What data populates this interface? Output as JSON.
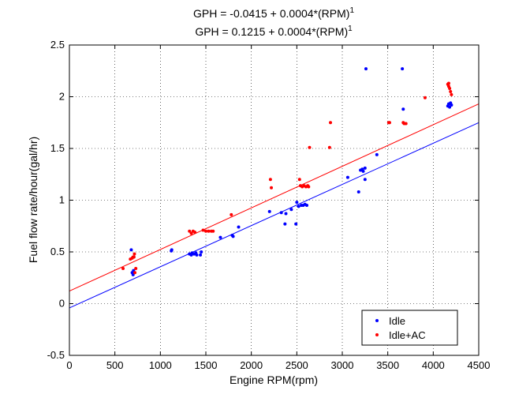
{
  "chart_data": {
    "type": "scatter",
    "title_lines": [
      {
        "text": "GPH = -0.0415 + 0.0004*(RPM)",
        "exponent": "1"
      },
      {
        "text": "GPH = 0.1215 + 0.0004*(RPM)",
        "exponent": "1"
      }
    ],
    "xlabel": "Engine RPM(rpm)",
    "ylabel": "Fuel flow rate/hour(gal/hr)",
    "xlim": [
      0,
      4500
    ],
    "ylim": [
      -0.5,
      2.5
    ],
    "xticks": [
      0,
      500,
      1000,
      1500,
      2000,
      2500,
      3000,
      3500,
      4000,
      4500
    ],
    "yticks": [
      -0.5,
      0,
      0.5,
      1,
      1.5,
      2,
      2.5
    ],
    "grid": true,
    "legend_position": "bottom-right",
    "series": [
      {
        "name": "Idle",
        "color": "#0000ff",
        "marker": "dot",
        "points": [
          [
            680,
            0.52
          ],
          [
            690,
            0.3
          ],
          [
            700,
            0.28
          ],
          [
            705,
            0.32
          ],
          [
            1120,
            0.51
          ],
          [
            1125,
            0.52
          ],
          [
            1320,
            0.48
          ],
          [
            1340,
            0.47
          ],
          [
            1350,
            0.49
          ],
          [
            1370,
            0.48
          ],
          [
            1390,
            0.49
          ],
          [
            1400,
            0.47
          ],
          [
            1440,
            0.47
          ],
          [
            1450,
            0.5
          ],
          [
            1660,
            0.64
          ],
          [
            1790,
            0.66
          ],
          [
            1800,
            0.65
          ],
          [
            1860,
            0.74
          ],
          [
            2200,
            0.89
          ],
          [
            2330,
            0.88
          ],
          [
            2370,
            0.77
          ],
          [
            2380,
            0.87
          ],
          [
            2440,
            0.91
          ],
          [
            2490,
            0.77
          ],
          [
            2500,
            0.98
          ],
          [
            2520,
            0.94
          ],
          [
            2550,
            0.95
          ],
          [
            2570,
            0.95
          ],
          [
            2590,
            0.96
          ],
          [
            2610,
            0.95
          ],
          [
            3060,
            1.22
          ],
          [
            3180,
            1.08
          ],
          [
            3200,
            1.29
          ],
          [
            3220,
            1.3
          ],
          [
            3230,
            1.28
          ],
          [
            3250,
            1.31
          ],
          [
            3250,
            1.2
          ],
          [
            3260,
            2.27
          ],
          [
            3380,
            1.44
          ],
          [
            3660,
            2.27
          ],
          [
            3670,
            1.88
          ],
          [
            4160,
            1.91
          ],
          [
            4170,
            1.93
          ],
          [
            4180,
            1.9
          ],
          [
            4190,
            1.94
          ],
          [
            4200,
            1.92
          ]
        ]
      },
      {
        "name": "Idle+AC",
        "color": "#ff0000",
        "marker": "dot",
        "points": [
          [
            590,
            0.34
          ],
          [
            670,
            0.43
          ],
          [
            690,
            0.44
          ],
          [
            700,
            0.45
          ],
          [
            710,
            0.45
          ],
          [
            715,
            0.48
          ],
          [
            720,
            0.3
          ],
          [
            730,
            0.34
          ],
          [
            1320,
            0.7
          ],
          [
            1340,
            0.68
          ],
          [
            1360,
            0.7
          ],
          [
            1380,
            0.69
          ],
          [
            1470,
            0.71
          ],
          [
            1500,
            0.7
          ],
          [
            1530,
            0.7
          ],
          [
            1560,
            0.7
          ],
          [
            1580,
            0.7
          ],
          [
            1780,
            0.86
          ],
          [
            2210,
            1.2
          ],
          [
            2220,
            1.12
          ],
          [
            2530,
            1.2
          ],
          [
            2540,
            1.14
          ],
          [
            2560,
            1.13
          ],
          [
            2580,
            1.14
          ],
          [
            2600,
            1.13
          ],
          [
            2620,
            1.14
          ],
          [
            2630,
            1.13
          ],
          [
            2640,
            1.51
          ],
          [
            2860,
            1.51
          ],
          [
            2870,
            1.75
          ],
          [
            3510,
            1.75
          ],
          [
            3520,
            1.75
          ],
          [
            3670,
            1.75
          ],
          [
            3680,
            1.74
          ],
          [
            3700,
            1.74
          ],
          [
            3910,
            1.99
          ],
          [
            4160,
            2.12
          ],
          [
            4170,
            2.1
          ],
          [
            4180,
            2.08
          ],
          [
            4190,
            2.05
          ],
          [
            4200,
            2.02
          ],
          [
            4170,
            2.13
          ]
        ]
      }
    ],
    "fit_lines": [
      {
        "series": "Idle",
        "color": "#0000ff",
        "intercept": -0.0415,
        "slope": 0.000398
      },
      {
        "series": "Idle+AC",
        "color": "#ff0000",
        "intercept": 0.1215,
        "slope": 0.000402
      }
    ]
  }
}
